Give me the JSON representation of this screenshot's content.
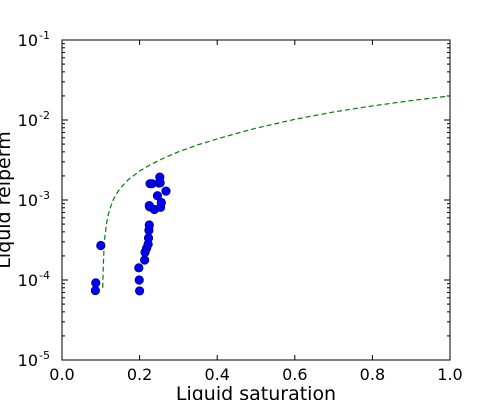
{
  "chart_data": {
    "type": "scatter",
    "xlabel": "Liquid saturation",
    "ylabel": "Liquid relperm",
    "xlim": [
      0.0,
      1.0
    ],
    "ylim": [
      1e-05,
      0.1
    ],
    "yscale": "log",
    "grid": false,
    "xticks": [
      {
        "value": 0.0,
        "label": "0.0"
      },
      {
        "value": 0.2,
        "label": "0.2"
      },
      {
        "value": 0.4,
        "label": "0.4"
      },
      {
        "value": 0.6,
        "label": "0.6"
      },
      {
        "value": 0.8,
        "label": "0.8"
      },
      {
        "value": 1.0,
        "label": "1.0"
      }
    ],
    "yticks": [
      {
        "value": 0.1,
        "base": "10",
        "exp": "-1"
      },
      {
        "value": 0.01,
        "base": "10",
        "exp": "-2"
      },
      {
        "value": 0.001,
        "base": "10",
        "exp": "-3"
      },
      {
        "value": 0.0001,
        "base": "10",
        "exp": "-4"
      },
      {
        "value": 1e-05,
        "base": "10",
        "exp": "-5"
      }
    ],
    "series": [
      {
        "kind": "scatter",
        "color": "#0000ff",
        "edgecolor": "#000080",
        "x": [
          0.086,
          0.087,
          0.1,
          0.198,
          0.199,
          0.2,
          0.213,
          0.214,
          0.218,
          0.222,
          0.223,
          0.224,
          0.225,
          0.226,
          0.225,
          0.227,
          0.232,
          0.238,
          0.246,
          0.25,
          0.252,
          0.253,
          0.254,
          0.256,
          0.268
        ],
        "y": [
          7.4e-05,
          9.2e-05,
          0.00027,
          0.000142,
          0.0001,
          7.3e-05,
          0.000178,
          0.000222,
          0.000249,
          0.00028,
          0.000335,
          0.000418,
          0.000487,
          0.00082,
          0.00085,
          0.0016,
          0.0016,
          0.00076,
          0.00113,
          0.00163,
          0.00193,
          0.00164,
          0.00081,
          0.00093,
          0.00129
        ]
      },
      {
        "kind": "line",
        "style": "dashed",
        "color": "#008000",
        "x": [
          0.105,
          0.106,
          0.108,
          0.11,
          0.115,
          0.12,
          0.13,
          0.14,
          0.15,
          0.17,
          0.2,
          0.23,
          0.26,
          0.3,
          0.35,
          0.4,
          0.45,
          0.5,
          0.6,
          0.7,
          0.8,
          0.9,
          1.0
        ],
        "y": [
          8e-05,
          0.00013,
          0.00023,
          0.00033,
          0.00052,
          0.00068,
          0.00096,
          0.00119,
          0.0014,
          0.00178,
          0.0023,
          0.0028,
          0.0033,
          0.004,
          0.0049,
          0.0058,
          0.0068,
          0.0079,
          0.0102,
          0.0126,
          0.015,
          0.0175,
          0.02
        ]
      }
    ]
  }
}
